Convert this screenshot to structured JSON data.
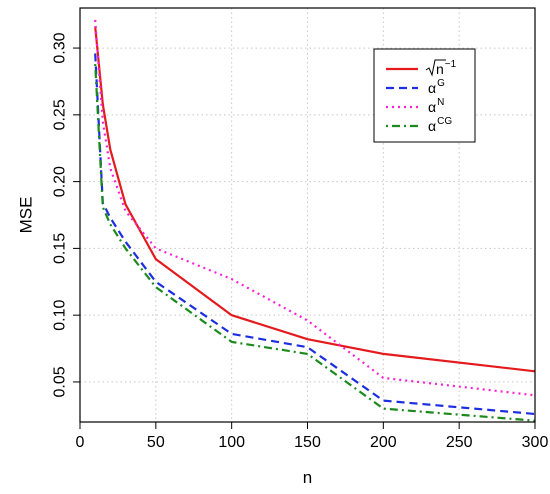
{
  "chart_data": {
    "type": "line",
    "xlabel": "n",
    "ylabel": "MSE",
    "xlim": [
      0,
      300
    ],
    "ylim": [
      0.02,
      0.33
    ],
    "xticks": [
      "0",
      "50",
      "100",
      "150",
      "200",
      "250",
      "300"
    ],
    "yticks": [
      "0.05",
      "0.10",
      "0.15",
      "0.20",
      "0.25",
      "0.30"
    ],
    "grid": true,
    "legend_position": "top-right",
    "series": [
      {
        "name": "√n⁻¹",
        "name_base": "n",
        "name_sup": "−1",
        "color": "#e41a1c",
        "dash": "solid",
        "x": [
          10,
          15,
          20,
          30,
          50,
          100,
          150,
          200,
          300
        ],
        "y": [
          0.316,
          0.258,
          0.224,
          0.183,
          0.142,
          0.1,
          0.082,
          0.071,
          0.058
        ]
      },
      {
        "name": "α^G",
        "name_base": "α",
        "name_sup": "G",
        "color": "#1c2fe0",
        "dash": "dashed",
        "x": [
          10,
          15,
          20,
          30,
          50,
          100,
          150,
          200,
          300
        ],
        "y": [
          0.296,
          0.184,
          0.173,
          0.155,
          0.125,
          0.086,
          0.076,
          0.036,
          0.026
        ]
      },
      {
        "name": "α^N",
        "name_base": "α",
        "name_sup": "N",
        "color": "#ff1fd6",
        "dash": "dotted",
        "x": [
          10,
          15,
          20,
          30,
          50,
          100,
          150,
          200,
          300
        ],
        "y": [
          0.321,
          0.245,
          0.21,
          0.178,
          0.15,
          0.127,
          0.096,
          0.053,
          0.04
        ]
      },
      {
        "name": "α^CG",
        "name_base": "α",
        "name_sup": "CG",
        "color": "#1b8a1b",
        "dash": "dotdash",
        "x": [
          10,
          15,
          20,
          30,
          50,
          100,
          150,
          200,
          300
        ],
        "y": [
          0.288,
          0.181,
          0.168,
          0.15,
          0.121,
          0.08,
          0.071,
          0.03,
          0.021
        ]
      }
    ]
  }
}
